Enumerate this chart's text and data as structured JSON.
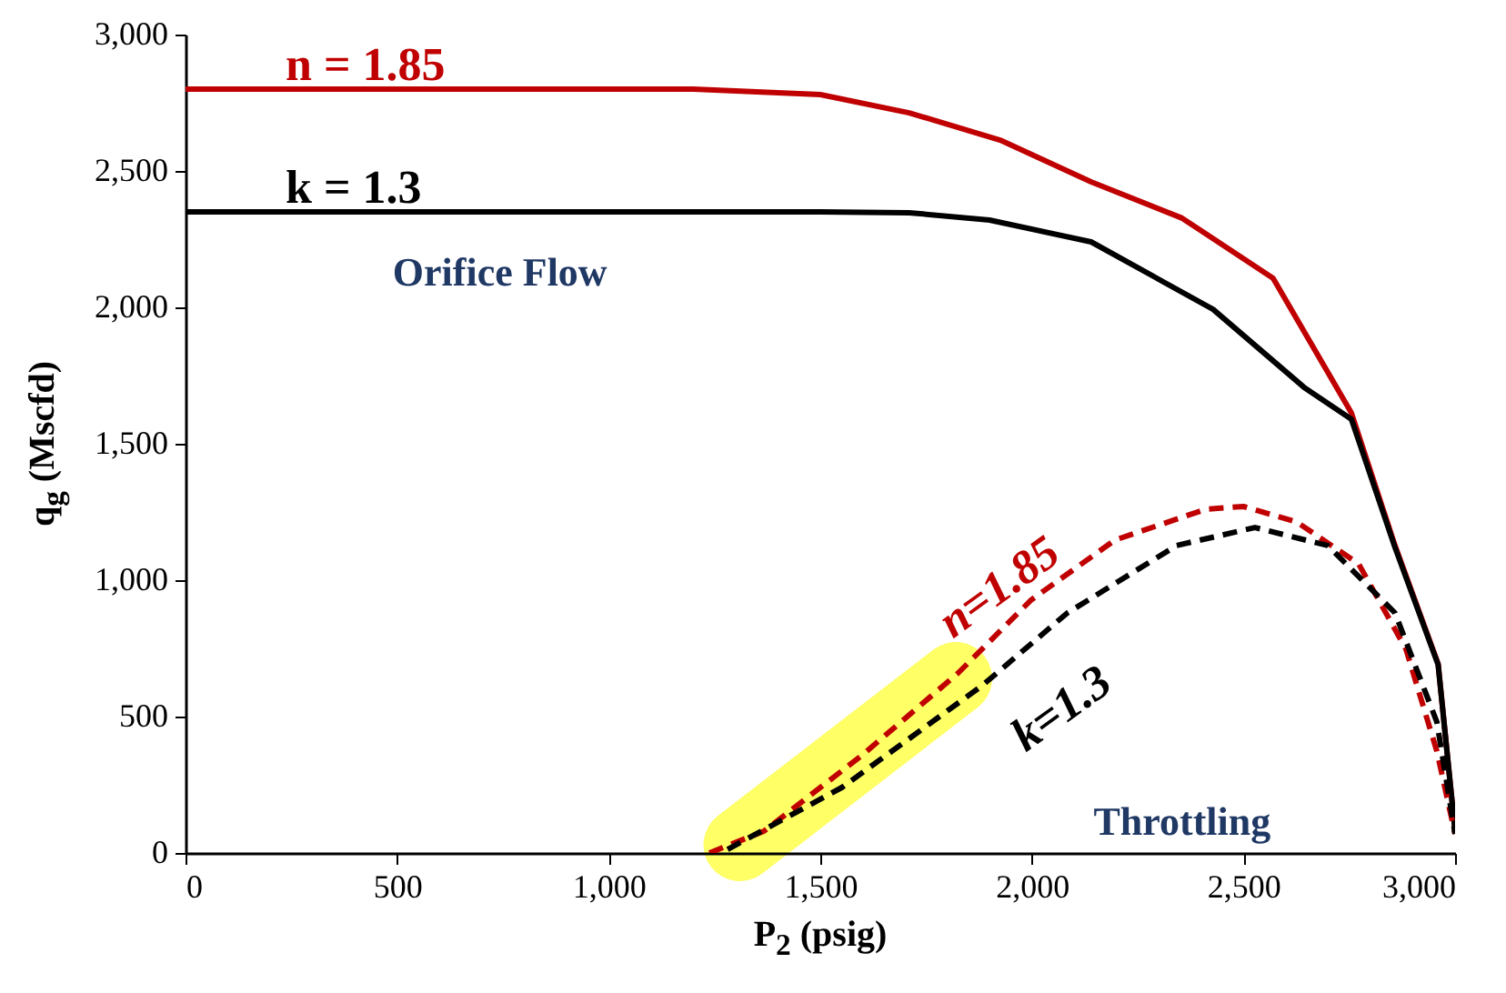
{
  "chart_data": {
    "type": "line",
    "xlabel": "P$_{2}$ (psig)",
    "ylabel": "q$_{g}$ (Mscfd)",
    "xlim": [
      0,
      3000
    ],
    "xticks": [
      0,
      500,
      {
        "value": 1000,
        "label": "1,000"
      },
      {
        "value": 1500,
        "label": "1,500"
      },
      {
        "value": 2000,
        "label": "2,000"
      },
      {
        "value": 2500,
        "label": "2,500"
      },
      {
        "value": 3000,
        "label": "3,000"
      }
    ],
    "ylim": [
      0,
      3000
    ],
    "yticks": [
      0,
      500,
      {
        "value": 1000,
        "label": "1,000"
      },
      {
        "value": 1500,
        "label": "1,500"
      },
      {
        "value": 2000,
        "label": "2,000"
      },
      {
        "value": 2500,
        "label": "2,500"
      },
      {
        "value": 3000,
        "label": "3,000"
      }
    ],
    "grid": false,
    "annotations": [
      "Orifice Flow",
      "Throttling"
    ],
    "series": [
      {
        "name": "n = 1.85",
        "color": "#c00000",
        "line_style": "solid",
        "x": [
          0,
          600,
          1200,
          1500,
          1710,
          1925,
          2140,
          2355,
          2570,
          2755,
          2858,
          2960,
          3000
        ],
        "values": [
          2800,
          2800,
          2800,
          2780,
          2713,
          2613,
          2460,
          2327,
          2107,
          1613,
          1127,
          693,
          80
        ]
      },
      {
        "name": "k = 1.3",
        "color": "#000000",
        "line_style": "solid",
        "x": [
          0,
          600,
          1200,
          1500,
          1710,
          1900,
          2140,
          2428,
          2643,
          2755,
          2858,
          2960,
          3000
        ],
        "values": [
          2350,
          2350,
          2350,
          2350,
          2347,
          2320,
          2240,
          1993,
          1707,
          1590,
          1120,
          690,
          80
        ]
      },
      {
        "name": "n=1.85",
        "color": "#c00000",
        "line_style": "dashed",
        "x": [
          1238,
          1367,
          1600,
          1826,
          1998,
          2196,
          2411,
          2500,
          2626,
          2772,
          2884,
          2957,
          3000
        ],
        "values": [
          0,
          80,
          360,
          660,
          927,
          1147,
          1260,
          1270,
          1213,
          1060,
          747,
          373,
          70
        ]
      },
      {
        "name": "k=1.3",
        "color": "#000000",
        "line_style": "dashed",
        "x": [
          1281,
          1551,
          1882,
          2084,
          2342,
          2527,
          2699,
          2858,
          2957,
          3000
        ],
        "values": [
          13,
          240,
          613,
          880,
          1127,
          1193,
          1127,
          880,
          480,
          70
        ]
      }
    ]
  }
}
